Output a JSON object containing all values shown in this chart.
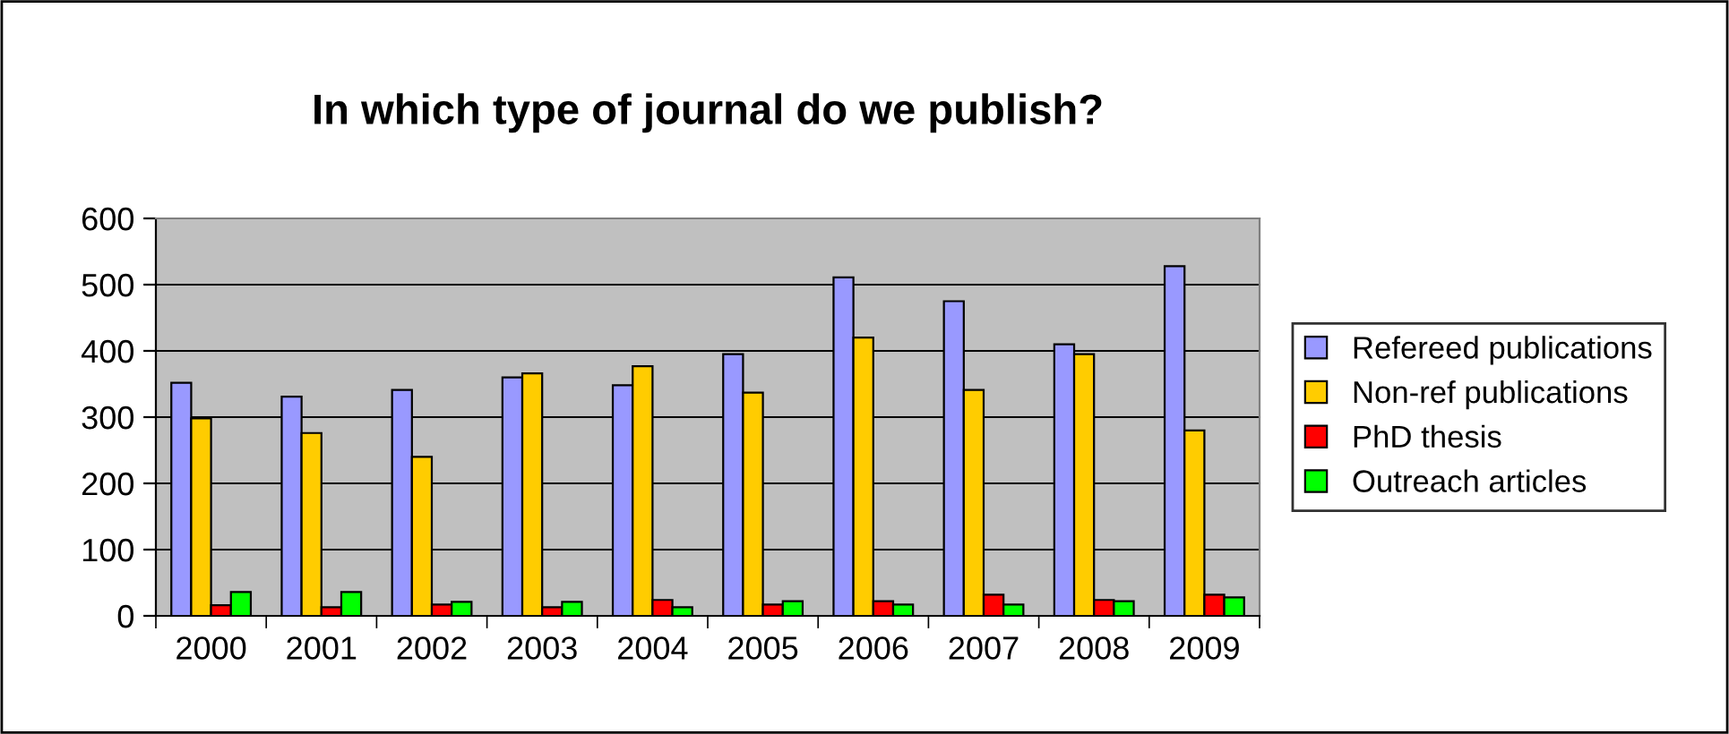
{
  "chart_data": {
    "type": "bar",
    "title": "In which type of journal do we publish?",
    "categories": [
      "2000",
      "2001",
      "2002",
      "2003",
      "2004",
      "2005",
      "2006",
      "2007",
      "2008",
      "2009"
    ],
    "series": [
      {
        "name": "Refereed publications",
        "color": "#9999ff",
        "values": [
          352,
          331,
          341,
          360,
          348,
          395,
          511,
          475,
          410,
          528
        ]
      },
      {
        "name": "Non-ref publications",
        "color": "#ffcc00",
        "values": [
          298,
          276,
          240,
          366,
          377,
          337,
          420,
          341,
          395,
          280
        ]
      },
      {
        "name": "PhD thesis",
        "color": "#ff0000",
        "values": [
          16,
          13,
          17,
          13,
          24,
          17,
          22,
          32,
          24,
          32
        ]
      },
      {
        "name": "Outreach articles",
        "color": "#00ff00",
        "values": [
          36,
          36,
          21,
          21,
          13,
          22,
          17,
          17,
          22,
          28
        ]
      }
    ],
    "ylim": [
      0,
      600
    ],
    "yticks": [
      0,
      100,
      200,
      300,
      400,
      500,
      600
    ],
    "grid": "y",
    "legend": "right"
  }
}
